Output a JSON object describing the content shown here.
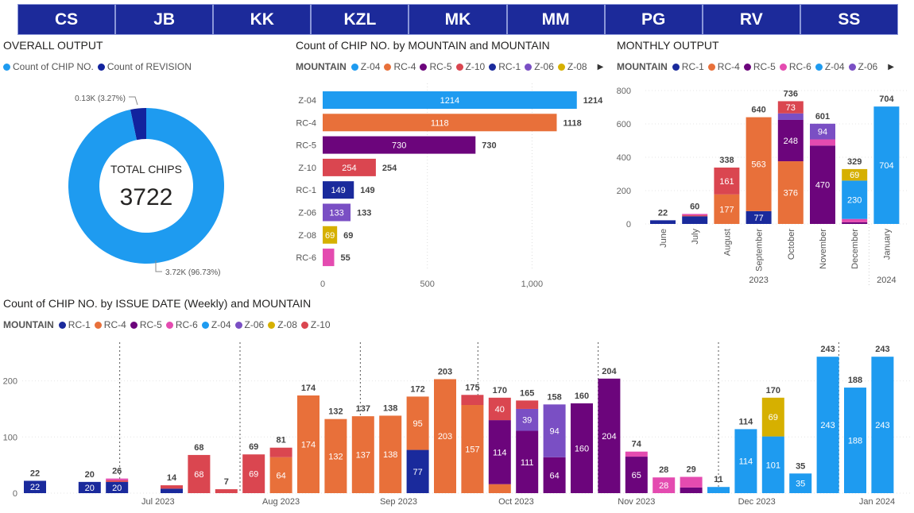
{
  "tabs": [
    "CS",
    "JB",
    "KK",
    "KZL",
    "MK",
    "MM",
    "PG",
    "RV",
    "SS"
  ],
  "colors": {
    "RC-1": "#1a2a9c",
    "RC-4": "#e8703a",
    "RC-5": "#6c057c",
    "RC-6": "#e44bb0",
    "Z-04": "#1e9bf0",
    "Z-06": "#7a4fc4",
    "Z-08": "#d6b000",
    "Z-10": "#da4650",
    "REVISION": "#12239e"
  },
  "donut": {
    "title": "OVERALL OUTPUT",
    "legend": [
      {
        "label": "Count of CHIP NO.",
        "color": "#1e9bf0"
      },
      {
        "label": "Count of REVISION",
        "color": "#12239e"
      }
    ],
    "center_label": "TOTAL CHIPS",
    "center_value": "3722",
    "label_small": "0.13K (3.27%)",
    "label_big": "3.72K (96.73%)"
  },
  "chart_data": [
    {
      "id": "donut",
      "type": "pie",
      "title": "OVERALL OUTPUT",
      "categories": [
        "Count of CHIP NO.",
        "Count of REVISION"
      ],
      "percent": [
        96.73,
        3.27
      ],
      "labels": [
        "3.72K (96.73%)",
        "0.13K (3.27%)"
      ]
    },
    {
      "id": "hbar",
      "type": "bar",
      "orientation": "horizontal",
      "title": "Count of CHIP NO. by MOUNTAIN and MOUNTAIN",
      "legend_title": "MOUNTAIN",
      "legend": [
        "Z-04",
        "RC-4",
        "RC-5",
        "Z-10",
        "RC-1",
        "Z-06",
        "Z-08"
      ],
      "categories": [
        "Z-04",
        "RC-4",
        "RC-5",
        "Z-10",
        "RC-1",
        "Z-06",
        "Z-08",
        "RC-6"
      ],
      "values": [
        1214,
        1118,
        730,
        254,
        149,
        133,
        69,
        55
      ],
      "xlim": [
        0,
        1250
      ],
      "ticks": [
        0,
        500,
        1000
      ],
      "tick_labels": [
        "0",
        "500",
        "1,000"
      ]
    },
    {
      "id": "monthly",
      "type": "bar",
      "stacked": true,
      "title": "MONTHLY OUTPUT",
      "legend_title": "MOUNTAIN",
      "legend": [
        "RC-1",
        "RC-4",
        "RC-5",
        "RC-6",
        "Z-04",
        "Z-06"
      ],
      "categories": [
        "June",
        "July",
        "August",
        "September",
        "October",
        "November",
        "December",
        "January"
      ],
      "years": [
        {
          "label": "2023",
          "from": 0,
          "to": 6
        },
        {
          "label": "2024",
          "from": 7,
          "to": 7
        }
      ],
      "totals": [
        22,
        60,
        338,
        640,
        736,
        601,
        329,
        704
      ],
      "stacks": [
        [
          {
            "s": "RC-1",
            "v": 22,
            "lbl": ""
          }
        ],
        [
          {
            "s": "RC-1",
            "v": 46,
            "lbl": ""
          },
          {
            "s": "Z-10",
            "v": 6,
            "lbl": ""
          },
          {
            "s": "RC-6",
            "v": 8,
            "lbl": ""
          }
        ],
        [
          {
            "s": "RC-4",
            "v": 177,
            "lbl": "177"
          },
          {
            "s": "Z-10",
            "v": 161,
            "lbl": "161"
          }
        ],
        [
          {
            "s": "RC-1",
            "v": 77,
            "lbl": "77"
          },
          {
            "s": "RC-4",
            "v": 563,
            "lbl": "563"
          }
        ],
        [
          {
            "s": "RC-4",
            "v": 376,
            "lbl": "376"
          },
          {
            "s": "RC-5",
            "v": 248,
            "lbl": "248"
          },
          {
            "s": "Z-06",
            "v": 39,
            "lbl": ""
          },
          {
            "s": "Z-10",
            "v": 73,
            "lbl": "73"
          }
        ],
        [
          {
            "s": "RC-5",
            "v": 470,
            "lbl": "470"
          },
          {
            "s": "RC-6",
            "v": 37,
            "lbl": ""
          },
          {
            "s": "Z-06",
            "v": 94,
            "lbl": "94"
          }
        ],
        [
          {
            "s": "RC-5",
            "v": 10,
            "lbl": ""
          },
          {
            "s": "RC-6",
            "v": 20,
            "lbl": ""
          },
          {
            "s": "Z-04",
            "v": 230,
            "lbl": "230"
          },
          {
            "s": "Z-08",
            "v": 69,
            "lbl": "69"
          }
        ],
        [
          {
            "s": "Z-04",
            "v": 704,
            "lbl": "704"
          }
        ]
      ],
      "ylim": [
        0,
        800
      ],
      "ticks": [
        0,
        200,
        400,
        600,
        800
      ]
    },
    {
      "id": "weekly",
      "type": "bar",
      "stacked": true,
      "title": "Count of CHIP NO. by ISSUE DATE (Weekly) and MOUNTAIN",
      "legend_title": "MOUNTAIN",
      "legend": [
        "RC-1",
        "RC-4",
        "RC-5",
        "RC-6",
        "Z-04",
        "Z-06",
        "Z-08",
        "Z-10"
      ],
      "x_labels": [
        {
          "i": 4.5,
          "label": "Jul 2023"
        },
        {
          "i": 9,
          "label": "Aug 2023"
        },
        {
          "i": 13.3,
          "label": "Sep 2023"
        },
        {
          "i": 17.6,
          "label": "Oct 2023"
        },
        {
          "i": 22,
          "label": "Nov 2023"
        },
        {
          "i": 26.4,
          "label": "Dec 2023"
        },
        {
          "i": 30.8,
          "label": "Jan 2024"
        }
      ],
      "month_lines": [
        3.1,
        7.5,
        11.9,
        16.2,
        20.6,
        25,
        29.4
      ],
      "ylim": [
        0,
        245
      ],
      "ticks": [
        0,
        100,
        200
      ],
      "bars": [
        {
          "i": 0,
          "t": 22,
          "st": [
            {
              "s": "RC-1",
              "v": 22,
              "lbl": "22"
            }
          ]
        },
        {
          "i": 2,
          "t": 20,
          "st": [
            {
              "s": "RC-1",
              "v": 20,
              "lbl": "20"
            }
          ]
        },
        {
          "i": 3,
          "t": 26,
          "st": [
            {
              "s": "RC-1",
              "v": 20,
              "lbl": "20"
            },
            {
              "s": "Z-10",
              "v": 3,
              "lbl": ""
            },
            {
              "s": "RC-6",
              "v": 3,
              "lbl": ""
            }
          ]
        },
        {
          "i": 5,
          "t": 14,
          "st": [
            {
              "s": "RC-1",
              "v": 8,
              "lbl": ""
            },
            {
              "s": "Z-10",
              "v": 6,
              "lbl": ""
            }
          ]
        },
        {
          "i": 6,
          "t": 68,
          "st": [
            {
              "s": "Z-10",
              "v": 68,
              "lbl": "68"
            }
          ]
        },
        {
          "i": 7,
          "t": 7,
          "st": [
            {
              "s": "Z-10",
              "v": 7,
              "lbl": ""
            }
          ]
        },
        {
          "i": 8,
          "t": 69,
          "st": [
            {
              "s": "Z-10",
              "v": 69,
              "lbl": "69"
            }
          ]
        },
        {
          "i": 9,
          "t": 81,
          "st": [
            {
              "s": "RC-4",
              "v": 64,
              "lbl": "64"
            },
            {
              "s": "Z-10",
              "v": 17,
              "lbl": ""
            }
          ]
        },
        {
          "i": 10,
          "t": 174,
          "st": [
            {
              "s": "RC-4",
              "v": 174,
              "lbl": "174"
            }
          ]
        },
        {
          "i": 11,
          "t": 132,
          "st": [
            {
              "s": "RC-4",
              "v": 132,
              "lbl": "132"
            }
          ]
        },
        {
          "i": 12,
          "t": 137,
          "st": [
            {
              "s": "RC-4",
              "v": 137,
              "lbl": "137"
            }
          ]
        },
        {
          "i": 13,
          "t": 138,
          "st": [
            {
              "s": "RC-4",
              "v": 138,
              "lbl": "138"
            }
          ]
        },
        {
          "i": 14,
          "t": 172,
          "st": [
            {
              "s": "RC-1",
              "v": 77,
              "lbl": "77"
            },
            {
              "s": "RC-4",
              "v": 95,
              "lbl": "95"
            }
          ]
        },
        {
          "i": 15,
          "t": 203,
          "st": [
            {
              "s": "RC-4",
              "v": 203,
              "lbl": "203"
            }
          ]
        },
        {
          "i": 16,
          "t": 175,
          "st": [
            {
              "s": "RC-4",
              "v": 157,
              "lbl": "157"
            },
            {
              "s": "Z-10",
              "v": 18,
              "lbl": ""
            }
          ]
        },
        {
          "i": 17,
          "t": 170,
          "st": [
            {
              "s": "RC-4",
              "v": 16,
              "lbl": ""
            },
            {
              "s": "RC-5",
              "v": 114,
              "lbl": "114"
            },
            {
              "s": "Z-10",
              "v": 40,
              "lbl": "40"
            }
          ]
        },
        {
          "i": 18,
          "t": 165,
          "st": [
            {
              "s": "RC-5",
              "v": 111,
              "lbl": "111"
            },
            {
              "s": "Z-06",
              "v": 39,
              "lbl": "39"
            },
            {
              "s": "Z-10",
              "v": 15,
              "lbl": ""
            }
          ]
        },
        {
          "i": 19,
          "t": 158,
          "st": [
            {
              "s": "RC-5",
              "v": 64,
              "lbl": "64"
            },
            {
              "s": "Z-06",
              "v": 94,
              "lbl": "94"
            }
          ]
        },
        {
          "i": 20,
          "t": 160,
          "st": [
            {
              "s": "RC-5",
              "v": 160,
              "lbl": "160"
            }
          ]
        },
        {
          "i": 21,
          "t": 204,
          "st": [
            {
              "s": "RC-5",
              "v": 204,
              "lbl": "204"
            }
          ]
        },
        {
          "i": 22,
          "t": 74,
          "st": [
            {
              "s": "RC-5",
              "v": 65,
              "lbl": "65"
            },
            {
              "s": "RC-6",
              "v": 9,
              "lbl": ""
            }
          ]
        },
        {
          "i": 23,
          "t": 28,
          "st": [
            {
              "s": "RC-6",
              "v": 28,
              "lbl": "28"
            }
          ]
        },
        {
          "i": 24,
          "t": 29,
          "st": [
            {
              "s": "RC-5",
              "v": 10,
              "lbl": ""
            },
            {
              "s": "RC-6",
              "v": 19,
              "lbl": ""
            }
          ]
        },
        {
          "i": 25,
          "t": 11,
          "st": [
            {
              "s": "Z-04",
              "v": 11,
              "lbl": ""
            }
          ]
        },
        {
          "i": 26,
          "t": 114,
          "st": [
            {
              "s": "Z-04",
              "v": 114,
              "lbl": "114"
            }
          ]
        },
        {
          "i": 27,
          "t": 170,
          "st": [
            {
              "s": "Z-04",
              "v": 101,
              "lbl": "101"
            },
            {
              "s": "Z-08",
              "v": 69,
              "lbl": "69"
            }
          ]
        },
        {
          "i": 28,
          "t": 35,
          "st": [
            {
              "s": "Z-04",
              "v": 35,
              "lbl": "35"
            }
          ]
        },
        {
          "i": 29,
          "t": 243,
          "st": [
            {
              "s": "Z-04",
              "v": 243,
              "lbl": "243"
            }
          ]
        },
        {
          "i": 30,
          "t": 188,
          "st": [
            {
              "s": "Z-04",
              "v": 188,
              "lbl": "188"
            }
          ]
        },
        {
          "i": 31,
          "t": 243,
          "st": [
            {
              "s": "Z-04",
              "v": 243,
              "lbl": "243"
            }
          ]
        }
      ]
    }
  ]
}
